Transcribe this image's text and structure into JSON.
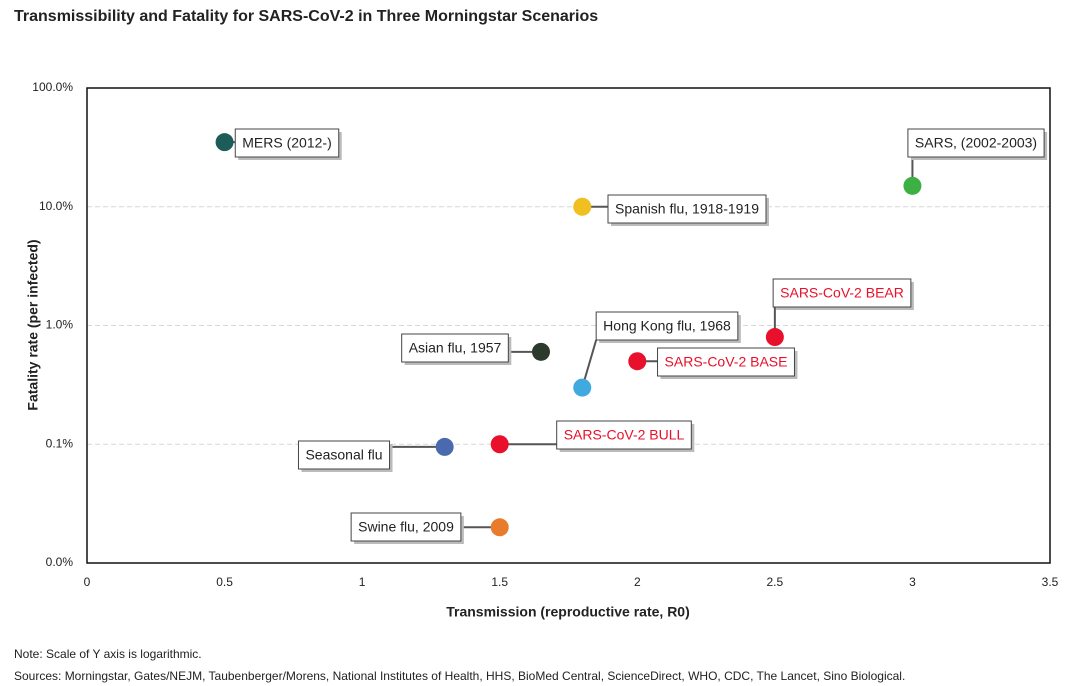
{
  "chart_data": {
    "type": "scatter",
    "title": "Transmissibility and Fatality for SARS-CoV-2 in Three Morningstar Scenarios",
    "x_label": "Transmission (reproductive rate, R0)",
    "y_label": "Fatality rate (per infected)",
    "note": "Note: Scale of Y axis is logarithmic.",
    "sources": "Sources: Morningstar, Gates/NEJM, Taubenberger/Morens, National Institutes of Health, HHS, BioMed Central, ScienceDirect, WHO, CDC, The Lancet, Sino Biological.",
    "xlim": [
      0,
      3.5
    ],
    "xticks": [
      0,
      0.5,
      1,
      1.5,
      2,
      2.5,
      3,
      3.5
    ],
    "ylim": [
      0.01,
      100
    ],
    "yscale": "log",
    "yticks": [
      {
        "value": 0.01,
        "label": "0.0%"
      },
      {
        "value": 0.1,
        "label": "0.1%"
      },
      {
        "value": 1,
        "label": "1.0%"
      },
      {
        "value": 10,
        "label": "10.0%"
      },
      {
        "value": 100,
        "label": "100.0%"
      }
    ],
    "grid": true,
    "series": [
      {
        "name": "MERS (2012-)",
        "color": "#1e5c5a",
        "x": [
          0.5
        ],
        "values": [
          35
        ]
      },
      {
        "name": "Spanish flu, 1918-1919",
        "color": "#f0c020",
        "x": [
          1.8
        ],
        "values": [
          10
        ]
      },
      {
        "name": "SARS, (2002-2003)",
        "color": "#3cb043",
        "x": [
          3
        ],
        "values": [
          15
        ]
      },
      {
        "name": "SARS-CoV-2 BEAR",
        "color": "#e8102a",
        "x": [
          2.5
        ],
        "values": [
          0.8
        ]
      },
      {
        "name": "Hong Kong flu, 1968",
        "color": "#3fa9e0",
        "x": [
          1.8
        ],
        "values": [
          0.3
        ]
      },
      {
        "name": "Asian flu, 1957",
        "color": "#2b3a2b",
        "x": [
          1.65
        ],
        "values": [
          0.6
        ]
      },
      {
        "name": "SARS-CoV-2 BASE",
        "color": "#e8102a",
        "x": [
          2
        ],
        "values": [
          0.5
        ]
      },
      {
        "name": "SARS-CoV-2 BULL",
        "color": "#e8102a",
        "x": [
          1.5
        ],
        "values": [
          0.1
        ]
      },
      {
        "name": "Seasonal flu",
        "color": "#4a6aad",
        "x": [
          1.3
        ],
        "values": [
          0.095
        ]
      },
      {
        "name": "Swine flu, 2009",
        "color": "#e87b2c",
        "x": [
          1.5
        ],
        "values": [
          0.02
        ]
      }
    ]
  }
}
